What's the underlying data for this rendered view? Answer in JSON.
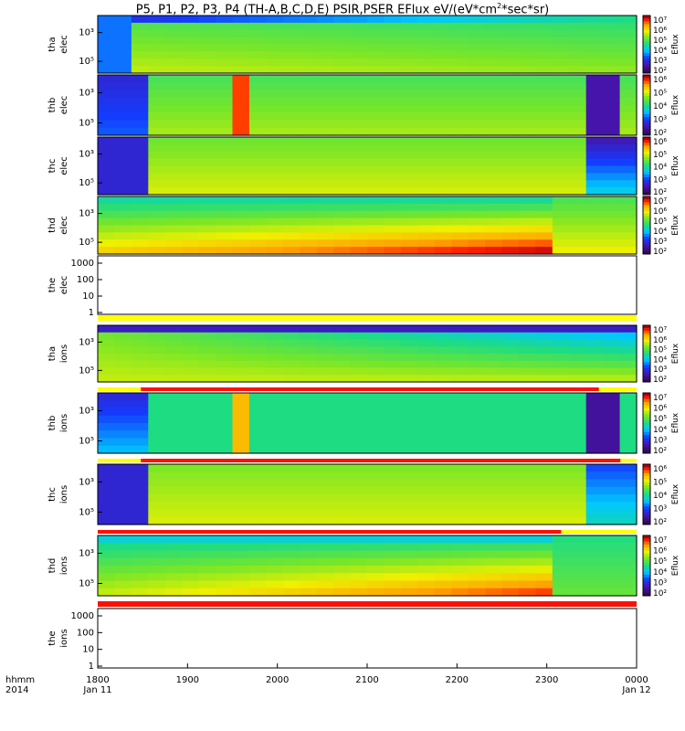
{
  "title": "P5, P1, P2, P3, P4 (TH-A,B,C,D,E) PSIR,PSER EFlux eV/(eV*cm²*sec*sr)",
  "title_parts": {
    "main": "P5, P1, P2, P3, P4 (TH-A,B,C,D,E) PSIR,PSER EFlux eV/(eV*cm",
    "sup": "2",
    "tail": "*sec*sr)"
  },
  "colorbar_label": "Eflux",
  "colors": {
    "low": "#3a1070",
    "mid": "#22d0a0",
    "high": "#ff2000",
    "flag_bar": "#ff1000",
    "flag_bar_alt": "#ffff00"
  },
  "chart_data": {
    "type": "heatmap",
    "x_axis": {
      "label_line1": "hhmm",
      "label_line2": "2014",
      "ticks": [
        "1800",
        "1900",
        "2000",
        "2100",
        "2200",
        "2300",
        "0000"
      ],
      "date_labels": {
        "start": "Jan 11",
        "end": "Jan 12"
      },
      "range": [
        "2014-01-11 18:00",
        "2014-01-12 00:00"
      ]
    },
    "panels": [
      {
        "probe": "tha",
        "species": "elec",
        "ylabel": [
          "tha",
          "elec"
        ],
        "scale": "log",
        "yticks": [
          "10³",
          "10⁵"
        ],
        "cbar_ticks": [
          "10²",
          "10³",
          "10⁴",
          "10⁵",
          "10⁶",
          "10⁷"
        ],
        "has_data": true
      },
      {
        "probe": "thb",
        "species": "elec",
        "ylabel": [
          "thb",
          "elec"
        ],
        "scale": "log",
        "yticks": [
          "10³",
          "10⁵"
        ],
        "cbar_ticks": [
          "10²",
          "10³",
          "10⁴",
          "10⁵",
          "10⁶"
        ],
        "has_data": true
      },
      {
        "probe": "thc",
        "species": "elec",
        "ylabel": [
          "thc",
          "elec"
        ],
        "scale": "log",
        "yticks": [
          "10³",
          "10⁵"
        ],
        "cbar_ticks": [
          "10²",
          "10³",
          "10⁴",
          "10⁵",
          "10⁶"
        ],
        "has_data": true
      },
      {
        "probe": "thd",
        "species": "elec",
        "ylabel": [
          "thd",
          "elec"
        ],
        "scale": "log",
        "yticks": [
          "10³",
          "10⁵"
        ],
        "cbar_ticks": [
          "10²",
          "10³",
          "10⁴",
          "10⁵",
          "10⁶",
          "10⁷"
        ],
        "has_data": true
      },
      {
        "probe": "the",
        "species": "elec",
        "ylabel": [
          "the",
          "elec"
        ],
        "scale": "log",
        "yticks": [
          "1000",
          "100",
          "10",
          "1"
        ],
        "cbar_ticks": [],
        "has_data": false
      },
      {
        "probe": "tha",
        "species": "ions",
        "ylabel": [
          "tha",
          "ions"
        ],
        "scale": "log",
        "yticks": [
          "10³",
          "10⁵"
        ],
        "cbar_ticks": [
          "10²",
          "10³",
          "10⁴",
          "10⁵",
          "10⁶",
          "10⁷"
        ],
        "has_data": true
      },
      {
        "probe": "thb",
        "species": "ions",
        "ylabel": [
          "thb",
          "ions"
        ],
        "scale": "log",
        "yticks": [
          "10³",
          "10⁵"
        ],
        "cbar_ticks": [
          "10²",
          "10³",
          "10⁴",
          "10⁵",
          "10⁶",
          "10⁷"
        ],
        "has_data": true
      },
      {
        "probe": "thc",
        "species": "ions",
        "ylabel": [
          "thc",
          "ions"
        ],
        "scale": "log",
        "yticks": [
          "10³",
          "10⁵"
        ],
        "cbar_ticks": [
          "10²",
          "10³",
          "10⁴",
          "10⁵",
          "10⁶"
        ],
        "has_data": true
      },
      {
        "probe": "thd",
        "species": "ions",
        "ylabel": [
          "thd",
          "ions"
        ],
        "scale": "log",
        "yticks": [
          "10³",
          "10⁵"
        ],
        "cbar_ticks": [
          "10²",
          "10³",
          "10⁴",
          "10⁵",
          "10⁶",
          "10⁷"
        ],
        "has_data": true
      },
      {
        "probe": "the",
        "species": "ions",
        "ylabel": [
          "the",
          "ions"
        ],
        "scale": "log",
        "yticks": [
          "1000",
          "100",
          "10",
          "1"
        ],
        "cbar_ticks": [],
        "has_data": false
      }
    ]
  }
}
